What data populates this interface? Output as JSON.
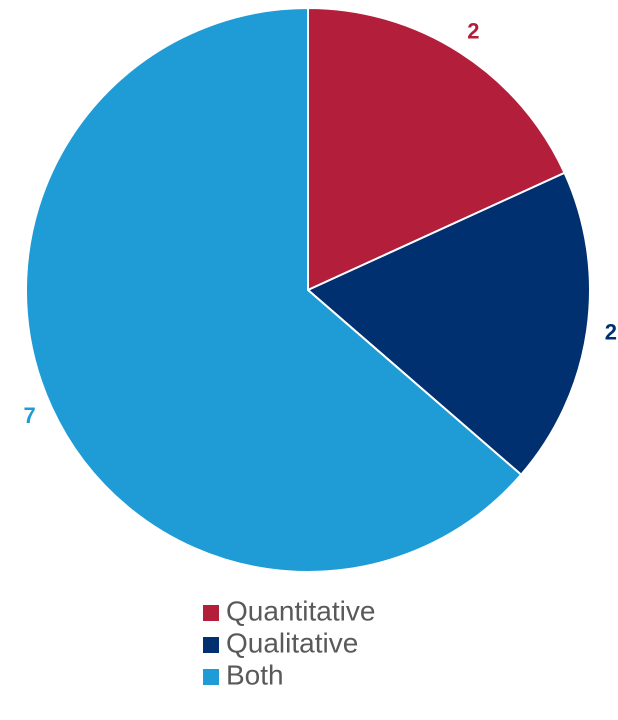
{
  "chart_data": {
    "type": "pie",
    "categories": [
      "Quantitative",
      "Qualitative",
      "Both"
    ],
    "values": [
      2,
      2,
      7
    ],
    "colors": [
      "#b31e3a",
      "#003070",
      "#1f9cd5"
    ],
    "legend": "bottom"
  }
}
